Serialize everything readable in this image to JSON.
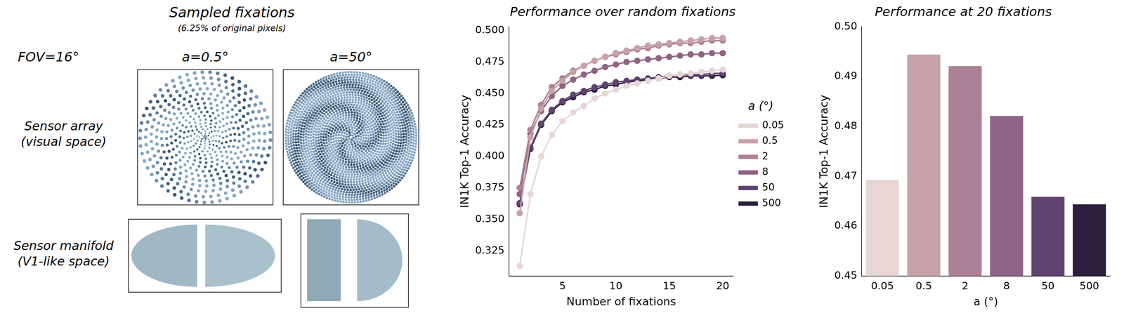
{
  "panel": {
    "title": "Sampled fixations",
    "subtitle": "(6.25% of original pixels)",
    "fov": "FOV=16°",
    "columns": [
      "a=0.5°",
      "a=50°"
    ],
    "rows": [
      {
        "label": "Sensor array",
        "sublabel": "(visual space)"
      },
      {
        "label": "Sensor manifold",
        "sublabel": "(V1-like space)"
      }
    ]
  },
  "chart_data": [
    {
      "type": "line",
      "title": "Performance over random fixations",
      "x_label": "Number of fixations",
      "y_label": "IN1K Top-1 Accuracy",
      "x": [
        1,
        2,
        3,
        4,
        5,
        6,
        7,
        8,
        9,
        10,
        11,
        12,
        13,
        14,
        15,
        16,
        17,
        18,
        19,
        20
      ],
      "series": [
        {
          "name": "0.05",
          "color": "#e8d6d5",
          "values": [
            0.313,
            0.37,
            0.4,
            0.417,
            0.428,
            0.435,
            0.44,
            0.446,
            0.45,
            0.453,
            0.456,
            0.458,
            0.46,
            0.462,
            0.464,
            0.465,
            0.466,
            0.467,
            0.468,
            0.469
          ]
        },
        {
          "name": "0.5",
          "color": "#c8a0a8",
          "values": [
            0.355,
            0.415,
            0.438,
            0.452,
            0.46,
            0.467,
            0.472,
            0.476,
            0.479,
            0.482,
            0.484,
            0.486,
            0.488,
            0.489,
            0.49,
            0.491,
            0.492,
            0.493,
            0.494,
            0.494
          ]
        },
        {
          "name": "2",
          "color": "#ac8197",
          "values": [
            0.375,
            0.421,
            0.441,
            0.455,
            0.462,
            0.468,
            0.472,
            0.476,
            0.479,
            0.481,
            0.483,
            0.485,
            0.486,
            0.488,
            0.489,
            0.49,
            0.49,
            0.491,
            0.492,
            0.492
          ]
        },
        {
          "name": "8",
          "color": "#8e6485",
          "values": [
            0.37,
            0.418,
            0.436,
            0.448,
            0.456,
            0.461,
            0.465,
            0.468,
            0.471,
            0.473,
            0.475,
            0.476,
            0.477,
            0.478,
            0.479,
            0.48,
            0.481,
            0.481,
            0.482,
            0.482
          ]
        },
        {
          "name": "50",
          "color": "#5e4570",
          "values": [
            0.363,
            0.407,
            0.426,
            0.437,
            0.444,
            0.449,
            0.452,
            0.455,
            0.457,
            0.459,
            0.46,
            0.461,
            0.462,
            0.463,
            0.464,
            0.465,
            0.465,
            0.465,
            0.466,
            0.466
          ]
        },
        {
          "name": "500",
          "color": "#2d1e3e",
          "values": [
            0.362,
            0.406,
            0.425,
            0.436,
            0.443,
            0.447,
            0.451,
            0.453,
            0.456,
            0.457,
            0.459,
            0.46,
            0.461,
            0.462,
            0.463,
            0.463,
            0.464,
            0.464,
            0.464,
            0.4645
          ]
        }
      ],
      "legend_title": "a (°)",
      "legend": "right",
      "marker": "circle",
      "grid": false,
      "xlim": [
        0,
        21
      ],
      "xticks": [
        5,
        10,
        15,
        20
      ],
      "ylim": [
        0.305,
        0.503
      ],
      "yticks": [
        0.325,
        {
          "value": 0.35,
          "label": "0.350"
        },
        0.375,
        {
          "value": 0.4,
          "label": "0.400"
        },
        0.425,
        {
          "value": 0.45,
          "label": "0.450"
        },
        0.475,
        {
          "value": 0.5,
          "label": "0.500"
        }
      ]
    },
    {
      "type": "bar",
      "title": "Performance at 20 fixations",
      "x_label": "a (°)",
      "y_label": "IN1K Top-1 Accuracy",
      "categories": [
        "0.05",
        "0.5",
        "2",
        "8",
        "50",
        "500"
      ],
      "values": [
        0.4693,
        0.4944,
        0.4921,
        0.4821,
        0.4659,
        0.4644
      ],
      "colors": [
        "#e8d6d5",
        "#c8a0a8",
        "#ac8197",
        "#8e6485",
        "#5e4570",
        "#2d1e3e"
      ],
      "grid": false,
      "ylim": [
        0.45,
        0.5
      ],
      "yticks": [
        0.45,
        0.46,
        0.47,
        0.48,
        0.49,
        {
          "value": 0.5,
          "label": "0.50"
        }
      ]
    }
  ]
}
